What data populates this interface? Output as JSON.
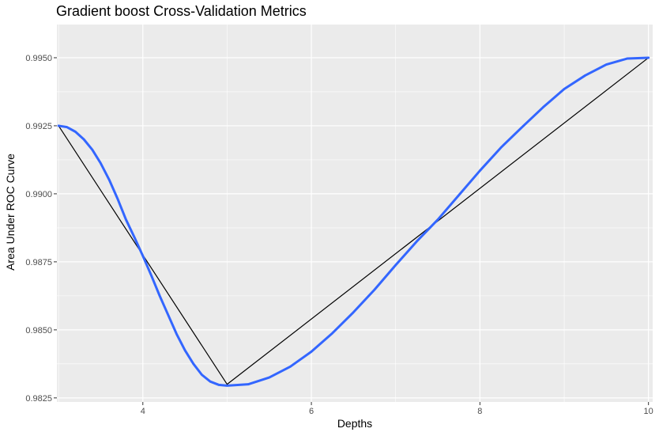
{
  "chart_data": {
    "type": "line",
    "title": "Gradient boost Cross-Validation Metrics",
    "xlabel": "Depths",
    "ylabel": "Area Under ROC Curve",
    "xlim": [
      2.98,
      10.05
    ],
    "ylim": [
      0.98235,
      0.99622
    ],
    "x_ticks": [
      4,
      6,
      8,
      10
    ],
    "y_ticks": [
      0.9825,
      0.985,
      0.9875,
      0.99,
      0.9925,
      0.995
    ],
    "x_tick_labels": [
      "4",
      "6",
      "8",
      "10"
    ],
    "y_tick_labels": [
      "0.9825",
      "0.9850",
      "0.9875",
      "0.9900",
      "0.9925",
      "0.9950"
    ],
    "grid": true,
    "series": [
      {
        "kind": "line",
        "color": "#000000",
        "x": [
          3,
          5,
          10
        ],
        "y": [
          0.9925,
          0.983,
          0.995
        ]
      },
      {
        "kind": "smooth",
        "color": "#3366ff",
        "x": [
          3,
          3.1,
          3.2,
          3.3,
          3.4,
          3.5,
          3.6,
          3.7,
          3.8,
          3.9,
          4.0,
          4.1,
          4.2,
          4.3,
          4.4,
          4.5,
          4.6,
          4.7,
          4.8,
          4.9,
          5.0,
          5.25,
          5.5,
          5.75,
          6.0,
          6.25,
          6.5,
          6.75,
          7.0,
          7.25,
          7.5,
          7.75,
          8.0,
          8.25,
          8.5,
          8.75,
          9.0,
          9.25,
          9.5,
          9.75,
          10.0
        ],
        "y": [
          0.9925,
          0.99245,
          0.99228,
          0.992,
          0.99162,
          0.99112,
          0.99052,
          0.98982,
          0.98905,
          0.9884,
          0.98772,
          0.987,
          0.98625,
          0.98555,
          0.98485,
          0.98425,
          0.98375,
          0.98335,
          0.9831,
          0.98298,
          0.98295,
          0.983,
          0.98325,
          0.98365,
          0.9842,
          0.98488,
          0.98565,
          0.98648,
          0.98738,
          0.98825,
          0.98905,
          0.98995,
          0.99085,
          0.9917,
          0.99245,
          0.99318,
          0.99385,
          0.99435,
          0.99475,
          0.99497,
          0.995
        ]
      }
    ]
  }
}
